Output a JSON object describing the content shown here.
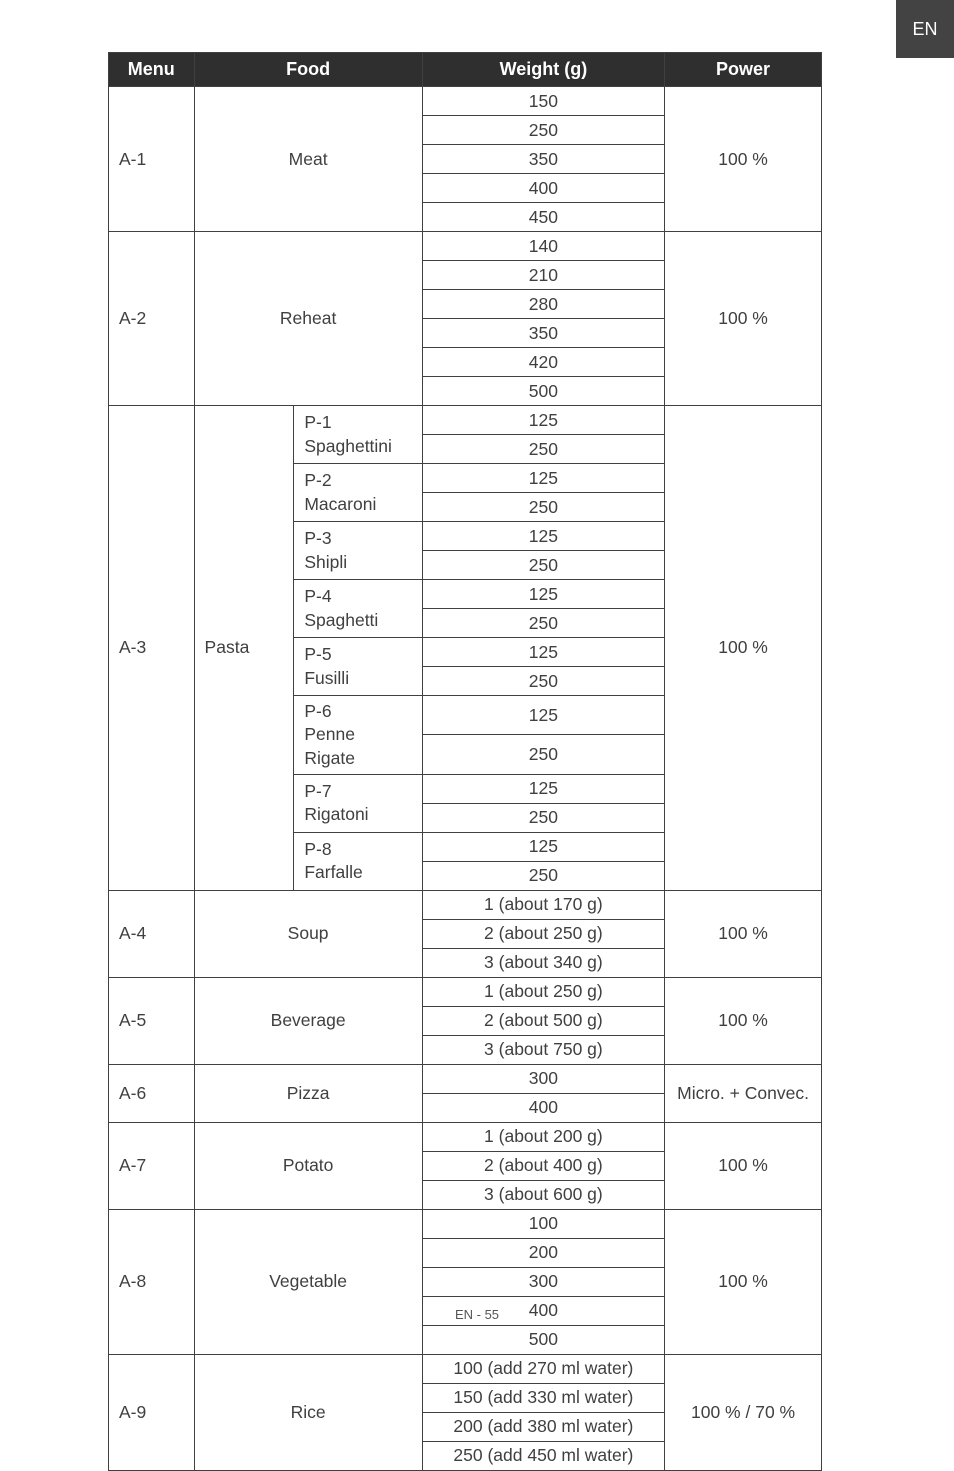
{
  "tab": "EN",
  "footer": "EN - 55",
  "headers": {
    "menu": "Menu",
    "food": "Food",
    "weight": "Weight (g)",
    "power": "Power"
  },
  "rows": [
    {
      "menu": "A-1",
      "food": "Meat",
      "power": "100 %",
      "weights": [
        "150",
        "250",
        "350",
        "400",
        "450"
      ]
    },
    {
      "menu": "A-2",
      "food": "Reheat",
      "power": "100 %",
      "weights": [
        "140",
        "210",
        "280",
        "350",
        "420",
        "500"
      ]
    },
    {
      "menu": "A-3",
      "food": "Pasta",
      "power": "100 %",
      "subs": [
        {
          "code": "P-1",
          "name": "Spaghettini",
          "weights": [
            "125",
            "250"
          ]
        },
        {
          "code": "P-2",
          "name": "Macaroni",
          "weights": [
            "125",
            "250"
          ]
        },
        {
          "code": "P-3",
          "name": "Shipli",
          "weights": [
            "125",
            "250"
          ]
        },
        {
          "code": "P-4",
          "name": "Spaghetti",
          "weights": [
            "125",
            "250"
          ]
        },
        {
          "code": "P-5",
          "name": "Fusilli",
          "weights": [
            "125",
            "250"
          ]
        },
        {
          "code": "P-6",
          "name": "Penne Rigate",
          "weights": [
            "125",
            "250"
          ]
        },
        {
          "code": "P-7",
          "name": "Rigatoni",
          "weights": [
            "125",
            "250"
          ]
        },
        {
          "code": "P-8",
          "name": "Farfalle",
          "weights": [
            "125",
            "250"
          ]
        }
      ]
    },
    {
      "menu": "A-4",
      "food": "Soup",
      "power": "100 %",
      "weights": [
        "1 (about 170 g)",
        "2 (about 250 g)",
        "3 (about 340 g)"
      ]
    },
    {
      "menu": "A-5",
      "food": "Beverage",
      "power": "100 %",
      "weights": [
        "1 (about 250 g)",
        "2 (about 500 g)",
        "3 (about 750 g)"
      ]
    },
    {
      "menu": "A-6",
      "food": "Pizza",
      "power": "Micro. + Convec.",
      "weights": [
        "300",
        "400"
      ]
    },
    {
      "menu": "A-7",
      "food": "Potato",
      "power": "100 %",
      "weights": [
        "1 (about 200 g)",
        "2 (about 400 g)",
        "3 (about 600 g)"
      ]
    },
    {
      "menu": "A-8",
      "food": "Vegetable",
      "power": "100 %",
      "weights": [
        "100",
        "200",
        "300",
        "400",
        "500"
      ]
    },
    {
      "menu": "A-9",
      "food": "Rice",
      "power": "100 % / 70 %",
      "weights": [
        "100 (add 270 ml water)",
        "150 (add 330 ml water)",
        "200 (add 380 ml water)",
        "250 (add 450 ml water)"
      ]
    }
  ]
}
